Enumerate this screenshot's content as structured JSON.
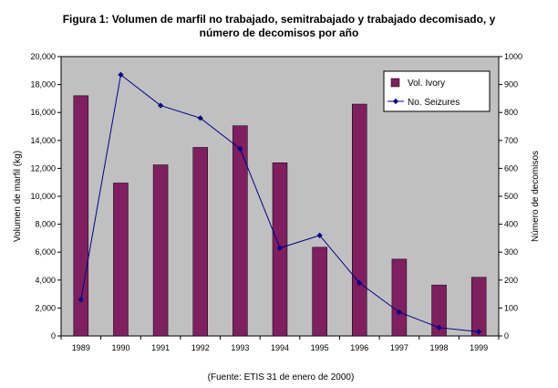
{
  "chart_data": {
    "type": "bar",
    "title_lines": [
      "Figura 1:  Volumen de marfil no trabajado, semitrabajado y trabajado decomisado, y",
      "número de decomisos por año"
    ],
    "categories": [
      "1989",
      "1990",
      "1991",
      "1992",
      "1993",
      "1994",
      "1995",
      "1996",
      "1997",
      "1998",
      "1999"
    ],
    "series": [
      {
        "name": "Vol. Ivory",
        "kind": "bar",
        "axis": "left",
        "color": "#7f1f5f",
        "values": [
          17200,
          10950,
          12250,
          13500,
          15050,
          12400,
          6350,
          16600,
          5500,
          3650,
          4200
        ]
      },
      {
        "name": "No. Seizures",
        "kind": "line",
        "axis": "right",
        "color": "#00008b",
        "values": [
          130,
          935,
          825,
          780,
          670,
          315,
          360,
          190,
          85,
          30,
          15
        ]
      }
    ],
    "ylabel": "Volumen de marfil (kg)",
    "y2label": "Número de decomisos",
    "ylim": [
      0,
      20000
    ],
    "y2lim": [
      0,
      1000
    ],
    "yticks": [
      "0",
      "2,000",
      "4,000",
      "6,000",
      "8,000",
      "10,000",
      "12,000",
      "14,000",
      "16,000",
      "18,000",
      "20,000"
    ],
    "y2ticks": [
      "0",
      "100",
      "200",
      "300",
      "400",
      "500",
      "600",
      "700",
      "800",
      "900",
      "1000"
    ],
    "plot_background": "#c0c0c0",
    "grid": false,
    "legend_position": "top-right",
    "source_note": "(Fuente: ETIS 31 de enero de 2000)"
  }
}
